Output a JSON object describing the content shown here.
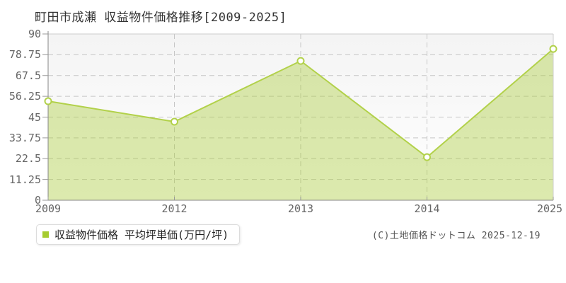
{
  "title": "町田市成瀬 収益物件価格推移[2009-2025]",
  "legend": {
    "label": "収益物件価格 平均坪単価(万円/坪)"
  },
  "copyright": "(C)土地価格ドットコム 2025-12-19",
  "colors": {
    "line": "#b2d14a",
    "fill": "rgba(171,206,62,0.42)",
    "marker": "#a6cc30",
    "point_fill": "#ffffff",
    "grid": "#c6c6c6",
    "axis": "#878787",
    "tick": "#999999",
    "plot_border": "#cccccc",
    "plot_bg_top": "#f4f4f4",
    "plot_bg_bottom": "#ffffff"
  },
  "chart_data": {
    "type": "area",
    "title": "町田市成瀬 収益物件価格推移[2009-2025]",
    "series_name": "収益物件価格 平均坪単価(万円/坪)",
    "categories": [
      "2009",
      "2012",
      "2013",
      "2014",
      "2025"
    ],
    "values": [
      53.6,
      42.5,
      75.4,
      23.3,
      81.9
    ],
    "xlabel": "",
    "ylabel": "",
    "ylim": [
      0,
      90
    ],
    "yticks": [
      0,
      11.25,
      22.5,
      33.75,
      45,
      56.25,
      67.5,
      78.75,
      90
    ],
    "ytick_labels": [
      "0",
      "11.25",
      "22.5",
      "33.75",
      "45",
      "56.25",
      "67.5",
      "78.75",
      "90"
    ],
    "grid": true,
    "grid_style": "dashed",
    "legend_position": "bottom-left",
    "marker_shape": "open-circle"
  }
}
